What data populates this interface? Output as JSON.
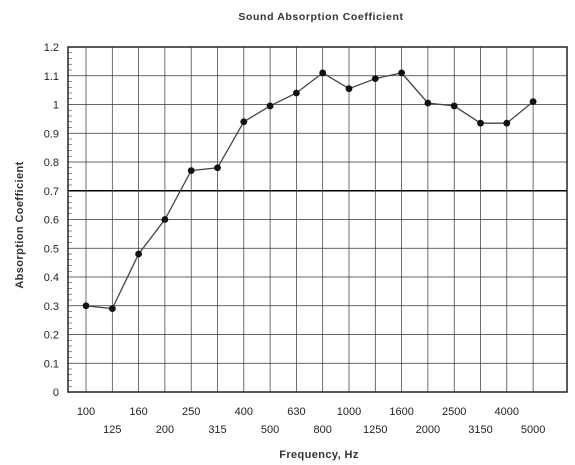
{
  "chart_data": {
    "type": "line",
    "title": "Sound Absorption Coefficient",
    "xlabel": "Frequency, Hz",
    "ylabel": "Absorption Coefficient",
    "categories": [
      "100",
      "125",
      "160",
      "200",
      "250",
      "315",
      "400",
      "500",
      "630",
      "800",
      "1000",
      "1250",
      "1600",
      "2000",
      "2500",
      "3150",
      "4000",
      "5000"
    ],
    "values": [
      0.3,
      0.29,
      0.48,
      0.6,
      0.77,
      0.78,
      0.94,
      0.995,
      1.04,
      1.11,
      1.055,
      1.09,
      1.11,
      1.005,
      0.995,
      0.935,
      0.935,
      1.01
    ],
    "ylim": [
      0,
      1.2
    ],
    "yticks": [
      "0",
      "0.1",
      "0.2",
      "0.3",
      "0.4",
      "0.5",
      "0.6",
      "0.7",
      "0.8",
      "0.9",
      "1",
      "1.1",
      "1.2"
    ],
    "grid": true,
    "reference_line": 0.7,
    "colors": {
      "line": "#444444",
      "marker": "#111111",
      "grid": "#333333",
      "reference": "#000000"
    }
  }
}
